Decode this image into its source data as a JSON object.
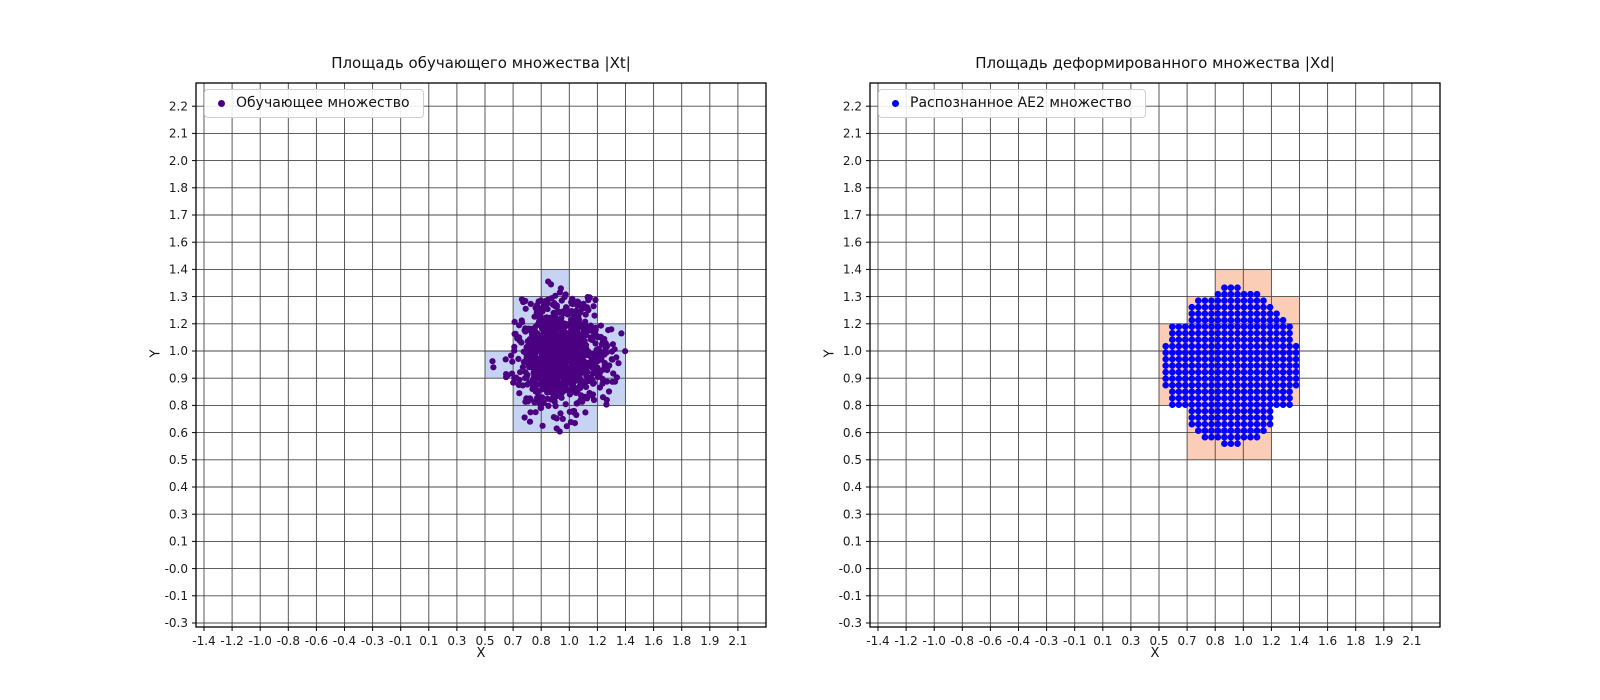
{
  "figure": {
    "background": "#ffffff",
    "grid_color": "#474747",
    "frame_color": "#000000",
    "text_color": "#1a1a1a"
  },
  "chart_data": [
    {
      "type": "scatter",
      "title": "Площадь обучающего множества |Xt|",
      "xlabel": "X",
      "ylabel": "Y",
      "legend": {
        "label": "Обучающее множество",
        "marker_color": "#4b0082",
        "position": "upper left"
      },
      "grid": true,
      "xticks": [
        "-1.4",
        "-1.2",
        "-1.0",
        "-0.8",
        "-0.6",
        "-0.4",
        "-0.3",
        "-0.1",
        "0.1",
        "0.3",
        "0.5",
        "0.7",
        "0.8",
        "1.0",
        "1.2",
        "1.4",
        "1.6",
        "1.8",
        "1.9",
        "2.1"
      ],
      "yticks": [
        "-0.3",
        "-0.1",
        "-0.0",
        "0.1",
        "0.3",
        "0.4",
        "0.5",
        "0.6",
        "0.8",
        "0.9",
        "1.0",
        "1.2",
        "1.3",
        "1.4",
        "1.6",
        "1.7",
        "1.8",
        "2.0",
        "2.1",
        "2.2"
      ],
      "cell_color": "#c7d3f2",
      "highlighted_cells": [
        [
          12,
          12
        ],
        [
          11,
          11
        ],
        [
          12,
          11
        ],
        [
          13,
          11
        ],
        [
          11,
          10
        ],
        [
          12,
          10
        ],
        [
          13,
          10
        ],
        [
          14,
          10
        ],
        [
          10,
          9
        ],
        [
          11,
          9
        ],
        [
          12,
          9
        ],
        [
          13,
          9
        ],
        [
          14,
          9
        ],
        [
          11,
          8
        ],
        [
          12,
          8
        ],
        [
          13,
          8
        ],
        [
          14,
          8
        ],
        [
          11,
          7
        ],
        [
          12,
          7
        ],
        [
          13,
          7
        ]
      ],
      "cluster": {
        "kind": "gaussian",
        "note": "dense normally-distributed training cluster centered near (1.0, 1.0)",
        "center_data": [
          0.97,
          0.98
        ],
        "std_data": [
          0.11,
          0.13
        ],
        "center_ticks": [
          12.7,
          9.9
        ],
        "std_ticks": [
          0.82,
          0.98
        ],
        "n": 1000,
        "seed": 42,
        "dot_color": "#4b0082",
        "dot_radius": 3.1,
        "outliers_ticks": [
          [
            12.35,
            12.45
          ],
          [
            12.15,
            11.75
          ],
          [
            11.45,
            11.55
          ],
          [
            13.9,
            11.3
          ],
          [
            10.3,
            9.4
          ],
          [
            10.75,
            9.15
          ],
          [
            14.55,
            10.25
          ],
          [
            14.75,
            9.55
          ],
          [
            14.35,
            9.3
          ],
          [
            14.2,
            8.3
          ],
          [
            12.05,
            7.25
          ],
          [
            12.55,
            7.15
          ],
          [
            13.2,
            7.35
          ],
          [
            11.6,
            7.4
          ]
        ]
      }
    },
    {
      "type": "scatter",
      "title": "Площадь деформированного множества |Xd|",
      "xlabel": "X",
      "ylabel": "Y",
      "legend": {
        "label": "Распознанное AE2 множество",
        "marker_color": "#0000ff",
        "position": "upper left"
      },
      "grid": true,
      "xticks": [
        "-1.4",
        "-1.2",
        "-1.0",
        "-0.8",
        "-0.6",
        "-0.4",
        "-0.3",
        "-0.1",
        "0.1",
        "0.3",
        "0.5",
        "0.7",
        "0.8",
        "1.0",
        "1.2",
        "1.4",
        "1.6",
        "1.8",
        "1.9",
        "2.1"
      ],
      "yticks": [
        "-0.3",
        "-0.1",
        "-0.0",
        "0.1",
        "0.3",
        "0.4",
        "0.5",
        "0.6",
        "0.8",
        "0.9",
        "1.0",
        "1.2",
        "1.3",
        "1.4",
        "1.6",
        "1.7",
        "1.8",
        "2.0",
        "2.1",
        "2.2"
      ],
      "cell_color": "#fbccb6",
      "highlighted_cells": [
        [
          12,
          12
        ],
        [
          13,
          12
        ],
        [
          11,
          11
        ],
        [
          12,
          11
        ],
        [
          13,
          11
        ],
        [
          14,
          11
        ],
        [
          10,
          10
        ],
        [
          11,
          10
        ],
        [
          12,
          10
        ],
        [
          13,
          10
        ],
        [
          14,
          10
        ],
        [
          10,
          9
        ],
        [
          11,
          9
        ],
        [
          12,
          9
        ],
        [
          13,
          9
        ],
        [
          14,
          9
        ],
        [
          10,
          8
        ],
        [
          11,
          8
        ],
        [
          12,
          8
        ],
        [
          13,
          8
        ],
        [
          14,
          8
        ],
        [
          11,
          7
        ],
        [
          12,
          7
        ],
        [
          13,
          7
        ],
        [
          11,
          6
        ],
        [
          12,
          6
        ],
        [
          13,
          6
        ]
      ],
      "dot_grid": {
        "kind": "grid_ellipse",
        "note": "regular lattice of recognized points filling an ellipse centered near (0.95, 0.93)",
        "center_data": [
          0.95,
          0.93
        ],
        "radius_data": 0.4,
        "center_ticks": [
          12.56,
          9.46
        ],
        "rx_ticks": 2.4,
        "ry_ticks": 2.92,
        "step_x_ticks": 0.232,
        "step_y_ticks": 0.239,
        "dot_color": "#0000ff",
        "dot_radius": 3.3
      }
    }
  ]
}
